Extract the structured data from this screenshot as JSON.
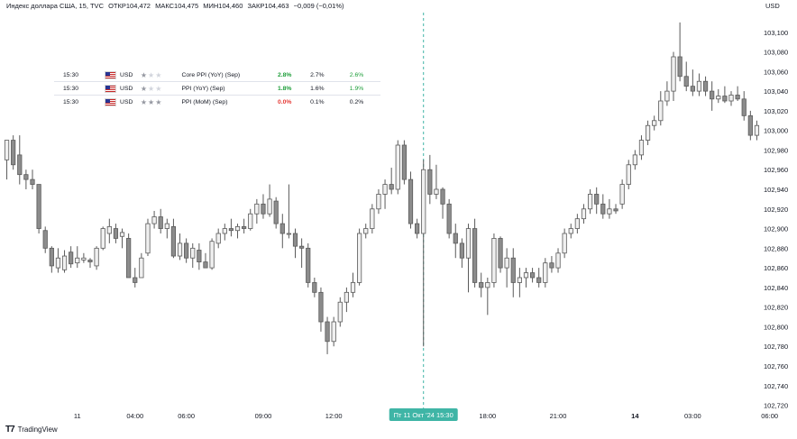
{
  "header": {
    "symbol": "Индекс доллара США, 15, TVC",
    "open": "ОТКР104,472",
    "high": "МАКС104,475",
    "low": "МИН104,460",
    "close": "ЗАКР104,463",
    "change": "−0,009 (−0,01%)",
    "currency": "USD"
  },
  "branding": {
    "logo_mark": "T7",
    "logo_text": "TradingView"
  },
  "events": [
    {
      "time": "15:30",
      "currency": "USD",
      "stars": 1,
      "name": "Core PPI (YoY) (Sep)",
      "actual": "2.8%",
      "actual_color": "up",
      "forecast": "2.7%",
      "previous": "2.6%",
      "previous_color": "up"
    },
    {
      "time": "15:30",
      "currency": "USD",
      "stars": 1,
      "name": "PPI (YoY) (Sep)",
      "actual": "1.8%",
      "actual_color": "up",
      "forecast": "1.6%",
      "previous": "1.9%",
      "previous_color": "up"
    },
    {
      "time": "15:30",
      "currency": "USD",
      "stars": 3,
      "name": "PPI (MoM) (Sep)",
      "actual": "0.0%",
      "actual_color": "down",
      "forecast": "0.1%",
      "previous": "0.2%",
      "previous_color": "neutral"
    }
  ],
  "colors": {
    "up_fill": "#f0f0f0",
    "up_border": "#5a5a5a",
    "down_fill": "#8c8c8c",
    "down_border": "#5a5a5a",
    "crosshair": "#3fb5a6",
    "time_badge_bg": "#3fb5a6",
    "axis_text": "#131722",
    "positive": "#1e9e3a",
    "negative": "#e53935"
  },
  "chart_data": {
    "type": "candlestick",
    "y_axis": {
      "range": [
        102.715,
        103.12
      ],
      "ticks": [
        "103,100",
        "103,080",
        "103,060",
        "103,040",
        "103,020",
        "103,000",
        "102,980",
        "102,960",
        "102,940",
        "102,920",
        "102,900",
        "102,880",
        "102,860",
        "102,840",
        "102,820",
        "102,800",
        "102,780",
        "102,760",
        "102,740",
        "102,720"
      ],
      "tick_values": [
        103.1,
        103.08,
        103.06,
        103.04,
        103.02,
        103.0,
        102.98,
        102.96,
        102.94,
        102.92,
        102.9,
        102.88,
        102.86,
        102.84,
        102.82,
        102.8,
        102.78,
        102.76,
        102.74,
        102.72
      ]
    },
    "x_axis": {
      "tick_labels": [
        {
          "label": "11",
          "bar": 11,
          "bold": false
        },
        {
          "label": "04:00",
          "bar": 20,
          "bold": false
        },
        {
          "label": "06:00",
          "bar": 28,
          "bold": false
        },
        {
          "label": "09:00",
          "bar": 40,
          "bold": false
        },
        {
          "label": "12:00",
          "bar": 51,
          "bold": false
        },
        {
          "label": "18:00",
          "bar": 75,
          "bold": false
        },
        {
          "label": "21:00",
          "bar": 86,
          "bold": false
        },
        {
          "label": "14",
          "bar": 98,
          "bold": true
        },
        {
          "label": "03:00",
          "bar": 107,
          "bold": false
        },
        {
          "label": "06:00",
          "bar": 119,
          "bold": false
        }
      ],
      "crosshair_label": "Пт 11 Окт '24   15:30",
      "crosshair_bar": 65
    },
    "grid": false,
    "candles": [
      {
        "o": 102.97,
        "h": 102.99,
        "l": 102.95,
        "c": 102.99
      },
      {
        "o": 102.99,
        "h": 102.995,
        "l": 102.96,
        "c": 102.965
      },
      {
        "o": 102.975,
        "h": 102.995,
        "l": 102.945,
        "c": 102.955
      },
      {
        "o": 102.955,
        "h": 102.96,
        "l": 102.94,
        "c": 102.95
      },
      {
        "o": 102.95,
        "h": 102.96,
        "l": 102.94,
        "c": 102.945
      },
      {
        "o": 102.945,
        "h": 102.945,
        "l": 102.895,
        "c": 102.9
      },
      {
        "o": 102.898,
        "h": 102.902,
        "l": 102.875,
        "c": 102.88
      },
      {
        "o": 102.88,
        "h": 102.882,
        "l": 102.855,
        "c": 102.862
      },
      {
        "o": 102.86,
        "h": 102.88,
        "l": 102.855,
        "c": 102.87
      },
      {
        "o": 102.858,
        "h": 102.878,
        "l": 102.855,
        "c": 102.872
      },
      {
        "o": 102.876,
        "h": 102.882,
        "l": 102.86,
        "c": 102.864
      },
      {
        "o": 102.865,
        "h": 102.882,
        "l": 102.86,
        "c": 102.87
      },
      {
        "o": 102.868,
        "h": 102.875,
        "l": 102.865,
        "c": 102.87
      },
      {
        "o": 102.868,
        "h": 102.87,
        "l": 102.86,
        "c": 102.866
      },
      {
        "o": 102.862,
        "h": 102.882,
        "l": 102.858,
        "c": 102.88
      },
      {
        "o": 102.88,
        "h": 102.902,
        "l": 102.878,
        "c": 102.9
      },
      {
        "o": 102.895,
        "h": 102.91,
        "l": 102.885,
        "c": 102.902
      },
      {
        "o": 102.9,
        "h": 102.905,
        "l": 102.885,
        "c": 102.89
      },
      {
        "o": 102.892,
        "h": 102.9,
        "l": 102.88,
        "c": 102.896
      },
      {
        "o": 102.89,
        "h": 102.895,
        "l": 102.85,
        "c": 102.85
      },
      {
        "o": 102.85,
        "h": 102.86,
        "l": 102.84,
        "c": 102.845
      },
      {
        "o": 102.85,
        "h": 102.875,
        "l": 102.85,
        "c": 102.87
      },
      {
        "o": 102.875,
        "h": 102.91,
        "l": 102.872,
        "c": 102.905
      },
      {
        "o": 102.905,
        "h": 102.918,
        "l": 102.9,
        "c": 102.912
      },
      {
        "o": 102.912,
        "h": 102.92,
        "l": 102.895,
        "c": 102.9
      },
      {
        "o": 102.9,
        "h": 102.91,
        "l": 102.89,
        "c": 102.905
      },
      {
        "o": 102.902,
        "h": 102.91,
        "l": 102.87,
        "c": 102.872
      },
      {
        "o": 102.872,
        "h": 102.895,
        "l": 102.868,
        "c": 102.885
      },
      {
        "o": 102.885,
        "h": 102.89,
        "l": 102.865,
        "c": 102.87
      },
      {
        "o": 102.87,
        "h": 102.885,
        "l": 102.86,
        "c": 102.88
      },
      {
        "o": 102.878,
        "h": 102.885,
        "l": 102.858,
        "c": 102.866
      },
      {
        "o": 102.866,
        "h": 102.875,
        "l": 102.86,
        "c": 102.86
      },
      {
        "o": 102.86,
        "h": 102.89,
        "l": 102.858,
        "c": 102.887
      },
      {
        "o": 102.885,
        "h": 102.9,
        "l": 102.88,
        "c": 102.895
      },
      {
        "o": 102.895,
        "h": 102.905,
        "l": 102.888,
        "c": 102.9
      },
      {
        "o": 102.9,
        "h": 102.91,
        "l": 102.892,
        "c": 102.898
      },
      {
        "o": 102.898,
        "h": 102.905,
        "l": 102.89,
        "c": 102.902
      },
      {
        "o": 102.902,
        "h": 102.91,
        "l": 102.895,
        "c": 102.9
      },
      {
        "o": 102.9,
        "h": 102.92,
        "l": 102.898,
        "c": 102.915
      },
      {
        "o": 102.915,
        "h": 102.93,
        "l": 102.905,
        "c": 102.925
      },
      {
        "o": 102.925,
        "h": 102.935,
        "l": 102.91,
        "c": 102.915
      },
      {
        "o": 102.915,
        "h": 102.945,
        "l": 102.912,
        "c": 102.93
      },
      {
        "o": 102.928,
        "h": 102.932,
        "l": 102.9,
        "c": 102.905
      },
      {
        "o": 102.905,
        "h": 102.915,
        "l": 102.88,
        "c": 102.895
      },
      {
        "o": 102.895,
        "h": 102.945,
        "l": 102.89,
        "c": 102.895
      },
      {
        "o": 102.895,
        "h": 102.9,
        "l": 102.87,
        "c": 102.882
      },
      {
        "o": 102.882,
        "h": 102.89,
        "l": 102.86,
        "c": 102.88
      },
      {
        "o": 102.88,
        "h": 102.885,
        "l": 102.84,
        "c": 102.845
      },
      {
        "o": 102.845,
        "h": 102.85,
        "l": 102.83,
        "c": 102.835
      },
      {
        "o": 102.835,
        "h": 102.84,
        "l": 102.795,
        "c": 102.805
      },
      {
        "o": 102.805,
        "h": 102.81,
        "l": 102.772,
        "c": 102.785
      },
      {
        "o": 102.785,
        "h": 102.81,
        "l": 102.78,
        "c": 102.805
      },
      {
        "o": 102.805,
        "h": 102.83,
        "l": 102.8,
        "c": 102.825
      },
      {
        "o": 102.825,
        "h": 102.84,
        "l": 102.815,
        "c": 102.835
      },
      {
        "o": 102.835,
        "h": 102.855,
        "l": 102.83,
        "c": 102.845
      },
      {
        "o": 102.845,
        "h": 102.9,
        "l": 102.842,
        "c": 102.895
      },
      {
        "o": 102.895,
        "h": 102.905,
        "l": 102.89,
        "c": 102.9
      },
      {
        "o": 102.9,
        "h": 102.925,
        "l": 102.895,
        "c": 102.92
      },
      {
        "o": 102.92,
        "h": 102.94,
        "l": 102.915,
        "c": 102.935
      },
      {
        "o": 102.935,
        "h": 102.95,
        "l": 102.92,
        "c": 102.945
      },
      {
        "o": 102.945,
        "h": 102.962,
        "l": 102.935,
        "c": 102.94
      },
      {
        "o": 102.94,
        "h": 102.99,
        "l": 102.935,
        "c": 102.985
      },
      {
        "o": 102.985,
        "h": 102.99,
        "l": 102.945,
        "c": 102.95
      },
      {
        "o": 102.95,
        "h": 102.958,
        "l": 102.9,
        "c": 102.905
      },
      {
        "o": 102.905,
        "h": 102.91,
        "l": 102.89,
        "c": 102.895
      },
      {
        "o": 102.895,
        "h": 102.97,
        "l": 102.78,
        "c": 102.96
      },
      {
        "o": 102.96,
        "h": 102.975,
        "l": 102.925,
        "c": 102.935
      },
      {
        "o": 102.935,
        "h": 102.965,
        "l": 102.93,
        "c": 102.94
      },
      {
        "o": 102.94,
        "h": 102.942,
        "l": 102.91,
        "c": 102.925
      },
      {
        "o": 102.925,
        "h": 102.93,
        "l": 102.89,
        "c": 102.895
      },
      {
        "o": 102.895,
        "h": 102.905,
        "l": 102.87,
        "c": 102.885
      },
      {
        "o": 102.885,
        "h": 102.89,
        "l": 102.86,
        "c": 102.87
      },
      {
        "o": 102.87,
        "h": 102.905,
        "l": 102.835,
        "c": 102.9
      },
      {
        "o": 102.9,
        "h": 102.91,
        "l": 102.84,
        "c": 102.845
      },
      {
        "o": 102.845,
        "h": 102.855,
        "l": 102.83,
        "c": 102.84
      },
      {
        "o": 102.84,
        "h": 102.85,
        "l": 102.812,
        "c": 102.845
      },
      {
        "o": 102.845,
        "h": 102.895,
        "l": 102.84,
        "c": 102.89
      },
      {
        "o": 102.89,
        "h": 102.892,
        "l": 102.855,
        "c": 102.86
      },
      {
        "o": 102.86,
        "h": 102.88,
        "l": 102.84,
        "c": 102.87
      },
      {
        "o": 102.87,
        "h": 102.88,
        "l": 102.83,
        "c": 102.845
      },
      {
        "o": 102.845,
        "h": 102.86,
        "l": 102.83,
        "c": 102.85
      },
      {
        "o": 102.85,
        "h": 102.86,
        "l": 102.84,
        "c": 102.855
      },
      {
        "o": 102.855,
        "h": 102.86,
        "l": 102.845,
        "c": 102.85
      },
      {
        "o": 102.85,
        "h": 102.86,
        "l": 102.84,
        "c": 102.845
      },
      {
        "o": 102.845,
        "h": 102.87,
        "l": 102.84,
        "c": 102.865
      },
      {
        "o": 102.865,
        "h": 102.872,
        "l": 102.855,
        "c": 102.86
      },
      {
        "o": 102.86,
        "h": 102.88,
        "l": 102.855,
        "c": 102.875
      },
      {
        "o": 102.875,
        "h": 102.9,
        "l": 102.87,
        "c": 102.895
      },
      {
        "o": 102.895,
        "h": 102.905,
        "l": 102.89,
        "c": 102.9
      },
      {
        "o": 102.9,
        "h": 102.915,
        "l": 102.895,
        "c": 102.91
      },
      {
        "o": 102.91,
        "h": 102.925,
        "l": 102.905,
        "c": 102.92
      },
      {
        "o": 102.92,
        "h": 102.94,
        "l": 102.915,
        "c": 102.935
      },
      {
        "o": 102.935,
        "h": 102.942,
        "l": 102.915,
        "c": 102.925
      },
      {
        "o": 102.925,
        "h": 102.935,
        "l": 102.91,
        "c": 102.915
      },
      {
        "o": 102.915,
        "h": 102.93,
        "l": 102.91,
        "c": 102.92
      },
      {
        "o": 102.92,
        "h": 102.925,
        "l": 102.915,
        "c": 102.918
      },
      {
        "o": 102.925,
        "h": 102.95,
        "l": 102.92,
        "c": 102.945
      },
      {
        "o": 102.945,
        "h": 102.97,
        "l": 102.94,
        "c": 102.965
      },
      {
        "o": 102.965,
        "h": 102.98,
        "l": 102.96,
        "c": 102.975
      },
      {
        "o": 102.975,
        "h": 102.995,
        "l": 102.97,
        "c": 102.99
      },
      {
        "o": 102.99,
        "h": 103.01,
        "l": 102.985,
        "c": 103.005
      },
      {
        "o": 103.005,
        "h": 103.015,
        "l": 103.0,
        "c": 103.01
      },
      {
        "o": 103.01,
        "h": 103.04,
        "l": 103.005,
        "c": 103.03
      },
      {
        "o": 103.03,
        "h": 103.05,
        "l": 103.025,
        "c": 103.04
      },
      {
        "o": 103.04,
        "h": 103.08,
        "l": 103.03,
        "c": 103.075
      },
      {
        "o": 103.075,
        "h": 103.11,
        "l": 103.05,
        "c": 103.055
      },
      {
        "o": 103.055,
        "h": 103.07,
        "l": 103.04,
        "c": 103.045
      },
      {
        "o": 103.045,
        "h": 103.062,
        "l": 103.035,
        "c": 103.04
      },
      {
        "o": 103.04,
        "h": 103.058,
        "l": 103.035,
        "c": 103.05
      },
      {
        "o": 103.05,
        "h": 103.055,
        "l": 103.035,
        "c": 103.04
      },
      {
        "o": 103.04,
        "h": 103.05,
        "l": 103.02,
        "c": 103.032
      },
      {
        "o": 103.032,
        "h": 103.042,
        "l": 103.028,
        "c": 103.035
      },
      {
        "o": 103.035,
        "h": 103.045,
        "l": 103.028,
        "c": 103.03
      },
      {
        "o": 103.03,
        "h": 103.04,
        "l": 103.025,
        "c": 103.036
      },
      {
        "o": 103.036,
        "h": 103.045,
        "l": 103.03,
        "c": 103.032
      },
      {
        "o": 103.032,
        "h": 103.04,
        "l": 103.01,
        "c": 103.015
      },
      {
        "o": 103.015,
        "h": 103.02,
        "l": 102.99,
        "c": 102.995
      },
      {
        "o": 102.995,
        "h": 103.01,
        "l": 102.99,
        "c": 103.005
      }
    ]
  }
}
